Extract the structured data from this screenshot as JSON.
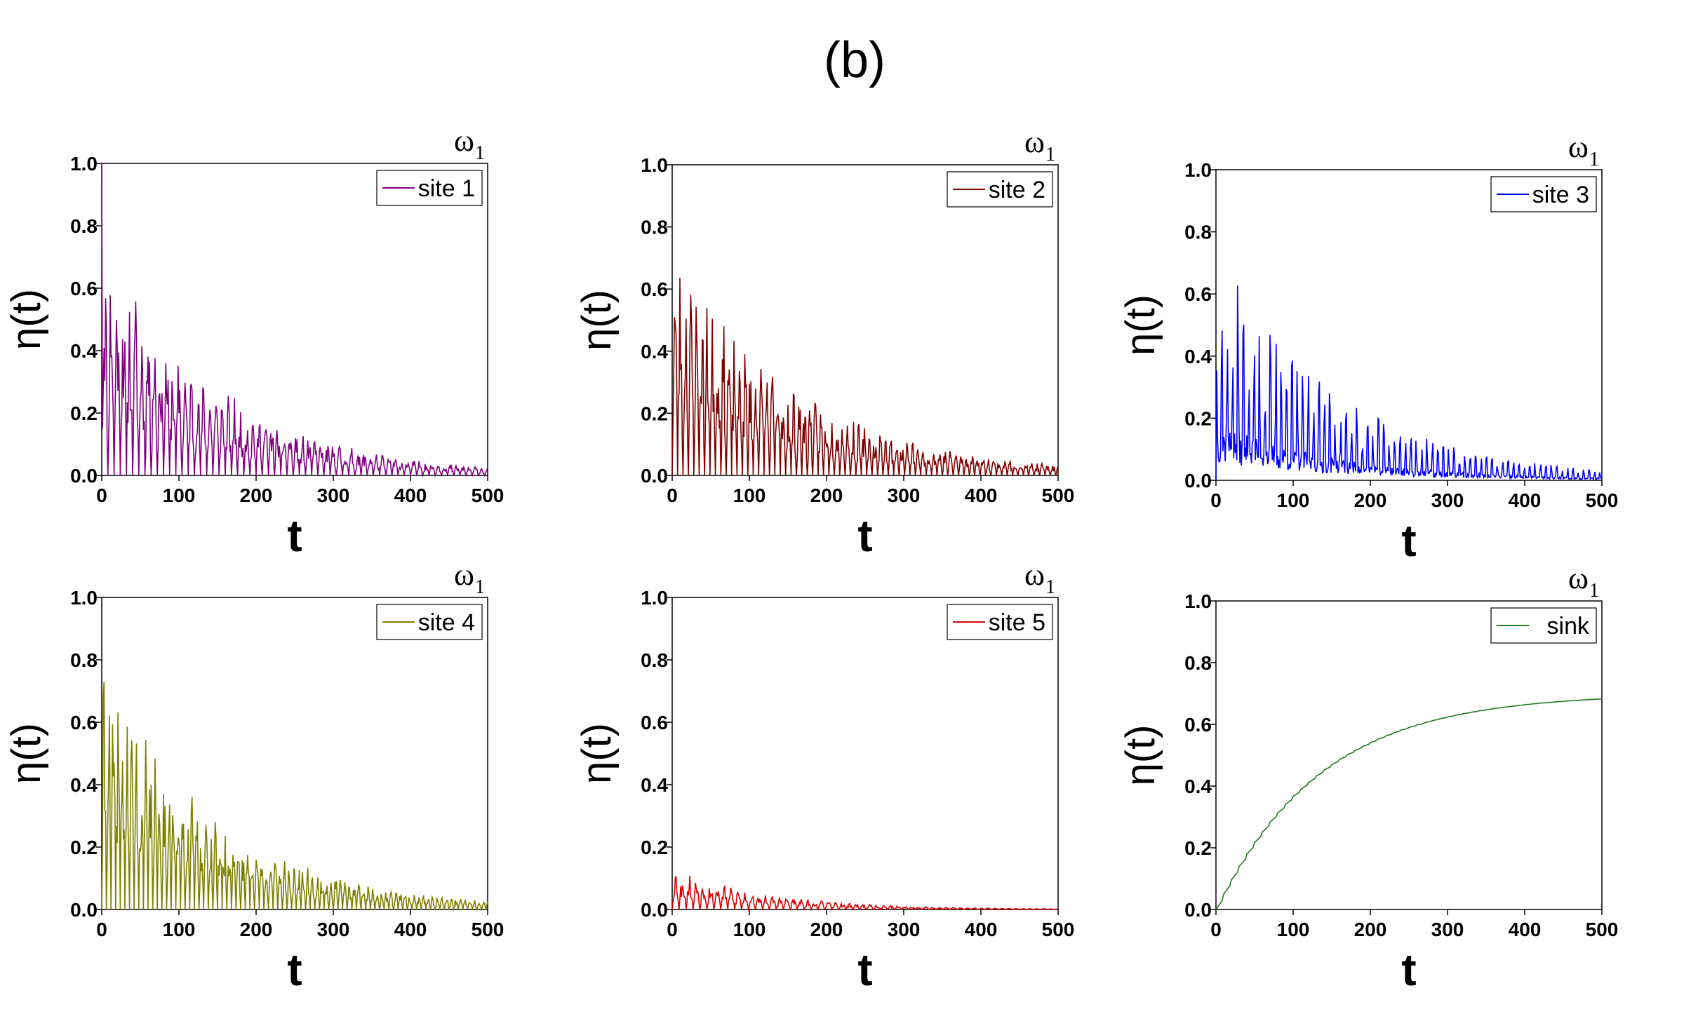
{
  "figure_label": "(b)",
  "chart_data": [
    {
      "type": "line",
      "legend": "site 1",
      "color": "#800080",
      "corner_label": "ω",
      "corner_sub": "1",
      "xlabel": "t",
      "ylabel": "η(t)",
      "xlim": [
        0,
        500
      ],
      "ylim": [
        0,
        1.0
      ],
      "xticks": [
        "0",
        "100",
        "200",
        "300",
        "400",
        "500"
      ],
      "yticks": [
        "0.0",
        "0.2",
        "0.4",
        "0.6",
        "0.8",
        "1.0"
      ],
      "series": [
        {
          "name": "site 1",
          "pattern": "oscillating",
          "period": 8,
          "initial": 1.0,
          "amp": 0.78,
          "decay": 150,
          "seed": 11
        }
      ]
    },
    {
      "type": "line",
      "legend": "site 2",
      "color": "#800000",
      "corner_label": "ω",
      "corner_sub": "1",
      "xlabel": "t",
      "ylabel": "η(t)",
      "xlim": [
        0,
        500
      ],
      "ylim": [
        0,
        1.0
      ],
      "xticks": [
        "0",
        "100",
        "200",
        "300",
        "400",
        "500"
      ],
      "yticks": [
        "0.0",
        "0.2",
        "0.4",
        "0.6",
        "0.8",
        "1.0"
      ],
      "series": [
        {
          "name": "site 2",
          "pattern": "oscillating",
          "period": 7,
          "initial": 0.0,
          "amp": 0.74,
          "decay": 165,
          "seed": 23
        }
      ]
    },
    {
      "type": "line",
      "legend": "site 3",
      "color": "#0000ff",
      "corner_label": "ω",
      "corner_sub": "1",
      "xlabel": "t",
      "ylabel": "η(t)",
      "xlim": [
        0,
        500
      ],
      "ylim": [
        0,
        1.0
      ],
      "xticks": [
        "0",
        "100",
        "200",
        "300",
        "400",
        "500"
      ],
      "yticks": [
        "0.0",
        "0.2",
        "0.4",
        "0.6",
        "0.8",
        "1.0"
      ],
      "series": [
        {
          "name": "site 3",
          "pattern": "spiky",
          "period": 7,
          "initial": 0.0,
          "amp": 0.75,
          "decay": 160,
          "seed": 37
        }
      ]
    },
    {
      "type": "line",
      "legend": "site 4",
      "color": "#808000",
      "corner_label": "ω",
      "corner_sub": "1",
      "xlabel": "t",
      "ylabel": "η(t)",
      "xlim": [
        0,
        500
      ],
      "ylim": [
        0,
        1.0
      ],
      "xticks": [
        "0",
        "100",
        "200",
        "300",
        "400",
        "500"
      ],
      "yticks": [
        "0.0",
        "0.2",
        "0.4",
        "0.6",
        "0.8",
        "1.0"
      ],
      "series": [
        {
          "name": "site 4",
          "pattern": "oscillating",
          "period": 6,
          "initial": 0.0,
          "amp": 0.8,
          "decay": 150,
          "seed": 41
        }
      ]
    },
    {
      "type": "line",
      "legend": "site 5",
      "color": "#dd0000",
      "corner_label": "ω",
      "corner_sub": "1",
      "xlabel": "t",
      "ylabel": "η(t)",
      "xlim": [
        0,
        500
      ],
      "ylim": [
        0,
        1.0
      ],
      "xticks": [
        "0",
        "100",
        "200",
        "300",
        "400",
        "500"
      ],
      "yticks": [
        "0.0",
        "0.2",
        "0.4",
        "0.6",
        "0.8",
        "1.0"
      ],
      "series": [
        {
          "name": "site 5",
          "pattern": "oscillating",
          "period": 9,
          "initial": 0.0,
          "amp": 0.14,
          "decay": 120,
          "seed": 53
        }
      ]
    },
    {
      "type": "line",
      "legend": "sink",
      "color": "#1e7a1e",
      "corner_label": "ω",
      "corner_sub": "1",
      "xlabel": "t",
      "ylabel": "η(t)",
      "xlim": [
        0,
        500
      ],
      "ylim": [
        0,
        1.0
      ],
      "xticks": [
        "0",
        "100",
        "200",
        "300",
        "400",
        "500"
      ],
      "yticks": [
        "0.0",
        "0.2",
        "0.4",
        "0.6",
        "0.8",
        "1.0"
      ],
      "series": [
        {
          "name": "sink",
          "pattern": "saturating",
          "asymptote": 0.7,
          "tau": 135,
          "values_at": {
            "t": [
              0,
              100,
              200,
              300,
              400,
              500
            ],
            "y": [
              0.0,
              0.37,
              0.53,
              0.62,
              0.66,
              0.68
            ]
          }
        }
      ]
    }
  ]
}
